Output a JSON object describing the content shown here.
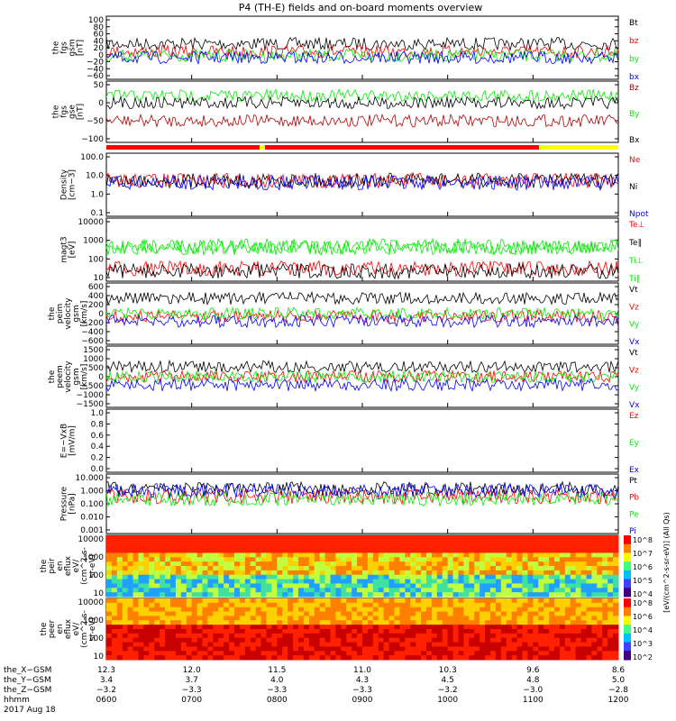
{
  "title": "P4 (TH-E) fields and on-board moments overview",
  "colors": {
    "black": "#000000",
    "red": "#ff0000",
    "green": "#00ee00",
    "blue": "#0000ff",
    "darkred": "#b00000",
    "yellow": "#ffff00"
  },
  "chart_data": [
    {
      "type": "line",
      "ylabel": [
        "the",
        "fgs",
        "gsm",
        "[nT]"
      ],
      "yticks": [
        "100",
        "80",
        "60",
        "40",
        "20",
        "0",
        "−20",
        "−40",
        "−60"
      ],
      "ylim": [
        -60,
        100
      ],
      "series": [
        {
          "name": "Bt",
          "color": "#000000",
          "level": 30
        },
        {
          "name": "bz",
          "color": "#ff0000",
          "level": 10
        },
        {
          "name": "by",
          "color": "#00ee00",
          "level": 0
        },
        {
          "name": "bx",
          "color": "#0000ff",
          "level": -5
        }
      ]
    },
    {
      "type": "line",
      "ylabel": [
        "the",
        "fgs",
        "gse",
        "[nT]"
      ],
      "yticks": [
        "50",
        "0",
        "−50",
        "−100"
      ],
      "ylim": [
        -120,
        50
      ],
      "series": [
        {
          "name": "Bz",
          "color": "#b00000",
          "level": -60
        },
        {
          "name": "By",
          "color": "#00ee00",
          "level": 10
        },
        {
          "name": "Bx",
          "color": "#000000",
          "level": -10
        }
      ]
    },
    {
      "type": "line",
      "log": true,
      "ylabel": [
        "Density",
        "[cm−3]"
      ],
      "yticks": [
        "100.0",
        "10.0",
        "1.0",
        "0.1"
      ],
      "ylim": [
        0.1,
        100
      ],
      "series": [
        {
          "name": "Ne",
          "color": "#ff0000",
          "level": 5
        },
        {
          "name": "Ni",
          "color": "#000000",
          "level": 5
        },
        {
          "name": "Npot",
          "color": "#0000ff",
          "level": 4
        }
      ]
    },
    {
      "type": "line",
      "log": true,
      "ylabel": [
        "magt3",
        "[eV]"
      ],
      "yticks": [
        "10000",
        "1000",
        "100",
        "10"
      ],
      "ylim": [
        10,
        10000
      ],
      "series": [
        {
          "name": "Te⊥",
          "color": "#ff0000",
          "level": 40
        },
        {
          "name": "Te∥",
          "color": "#000000",
          "level": 30
        },
        {
          "name": "Ti⊥",
          "color": "#00ee00",
          "level": 400
        },
        {
          "name": "Ti∥",
          "color": "#00ee00",
          "level": 450
        }
      ]
    },
    {
      "type": "line",
      "ylabel": [
        "the",
        "peim",
        "velocity",
        "gsm",
        "[km/s]"
      ],
      "yticks": [
        "600",
        "400",
        "200",
        "0",
        "−200",
        "−400",
        "−600"
      ],
      "ylim": [
        -600,
        600
      ],
      "series": [
        {
          "name": "Vt",
          "color": "#000000",
          "level": 300
        },
        {
          "name": "Vz",
          "color": "#ff0000",
          "level": -50
        },
        {
          "name": "Vy",
          "color": "#00ee00",
          "level": 0
        },
        {
          "name": "Vx",
          "color": "#0000ff",
          "level": -150
        }
      ]
    },
    {
      "type": "line",
      "ylabel": [
        "the",
        "peem",
        "velocity",
        "gsm",
        "[km/s]"
      ],
      "yticks": [
        "1500",
        "1000",
        "500",
        "0",
        "−500",
        "−1000",
        "−1500"
      ],
      "ylim": [
        -1500,
        1500
      ],
      "series": [
        {
          "name": "Vt",
          "color": "#000000",
          "level": 500
        },
        {
          "name": "Vz",
          "color": "#ff0000",
          "level": 0
        },
        {
          "name": "Vy",
          "color": "#00ee00",
          "level": 0
        },
        {
          "name": "Vx",
          "color": "#0000ff",
          "level": -400
        }
      ]
    },
    {
      "type": "line",
      "ylabel": [
        "E=−VxB",
        "[mV/m]"
      ],
      "yticks": [
        "1.0",
        "0.8",
        "0.6",
        "0.4",
        "0.2",
        "0.0"
      ],
      "ylim": [
        0,
        1
      ],
      "series": [
        {
          "name": "Ez",
          "color": "#ff0000"
        },
        {
          "name": "Ey",
          "color": "#00ee00"
        },
        {
          "name": "Ex",
          "color": "#0000ff"
        }
      ]
    },
    {
      "type": "line",
      "log": true,
      "ylabel": [
        "Pressure",
        "[nPa]"
      ],
      "yticks": [
        "10.000",
        "1.000",
        "0.100",
        "0.010",
        "0.001"
      ],
      "ylim": [
        0.001,
        10
      ],
      "series": [
        {
          "name": "Pt",
          "color": "#000000",
          "level": 1
        },
        {
          "name": "Pb",
          "color": "#ff0000",
          "level": 0.3
        },
        {
          "name": "Pe",
          "color": "#00ee00",
          "level": 0.2
        },
        {
          "name": "Pi",
          "color": "#0000ff",
          "level": 0.8
        }
      ]
    },
    {
      "type": "heatmap",
      "log": true,
      "ylabel": [
        "the",
        "peir",
        "en",
        "eflux",
        "eV/",
        "(cm^2-s-",
        "sr-eV)"
      ],
      "yticks": [
        "10000",
        "1000",
        "100",
        "10"
      ],
      "ylim": [
        5,
        25000
      ],
      "colorbar_ticks": [
        "10^8",
        "10^7",
        "10^6",
        "10^5",
        "10^4"
      ],
      "colorbar_label": "[eV/(cm^2-s-sr-eV)] (All Qs)"
    },
    {
      "type": "heatmap",
      "log": true,
      "ylabel": [
        "the",
        "peer",
        "en",
        "eflux",
        "eV/",
        "(cm^2-s-",
        "sr-eV)"
      ],
      "yticks": [
        "10000",
        "1000",
        "100",
        "10"
      ],
      "ylim": [
        5,
        25000
      ],
      "colorbar_ticks": [
        "10^8",
        "10^6",
        "10^4",
        "10^3",
        "10^2"
      ]
    }
  ],
  "xaxis": {
    "rows": [
      {
        "label": "the_X−GSM",
        "values": [
          "12.3",
          "12.0",
          "11.5",
          "11.0",
          "10.3",
          "9.6",
          "8.6"
        ]
      },
      {
        "label": "the_Y−GSM",
        "values": [
          "3.4",
          "3.7",
          "4.0",
          "4.3",
          "4.5",
          "4.8",
          "5.0"
        ]
      },
      {
        "label": "the_Z−GSM",
        "values": [
          "−3.2",
          "−3.3",
          "−3.3",
          "−3.3",
          "−3.2",
          "−3.0",
          "−2.8"
        ]
      },
      {
        "label": "hhmm",
        "values": [
          "0600",
          "0700",
          "0800",
          "0900",
          "1000",
          "1100",
          "1200"
        ]
      }
    ],
    "date": "2017 Aug 18"
  }
}
